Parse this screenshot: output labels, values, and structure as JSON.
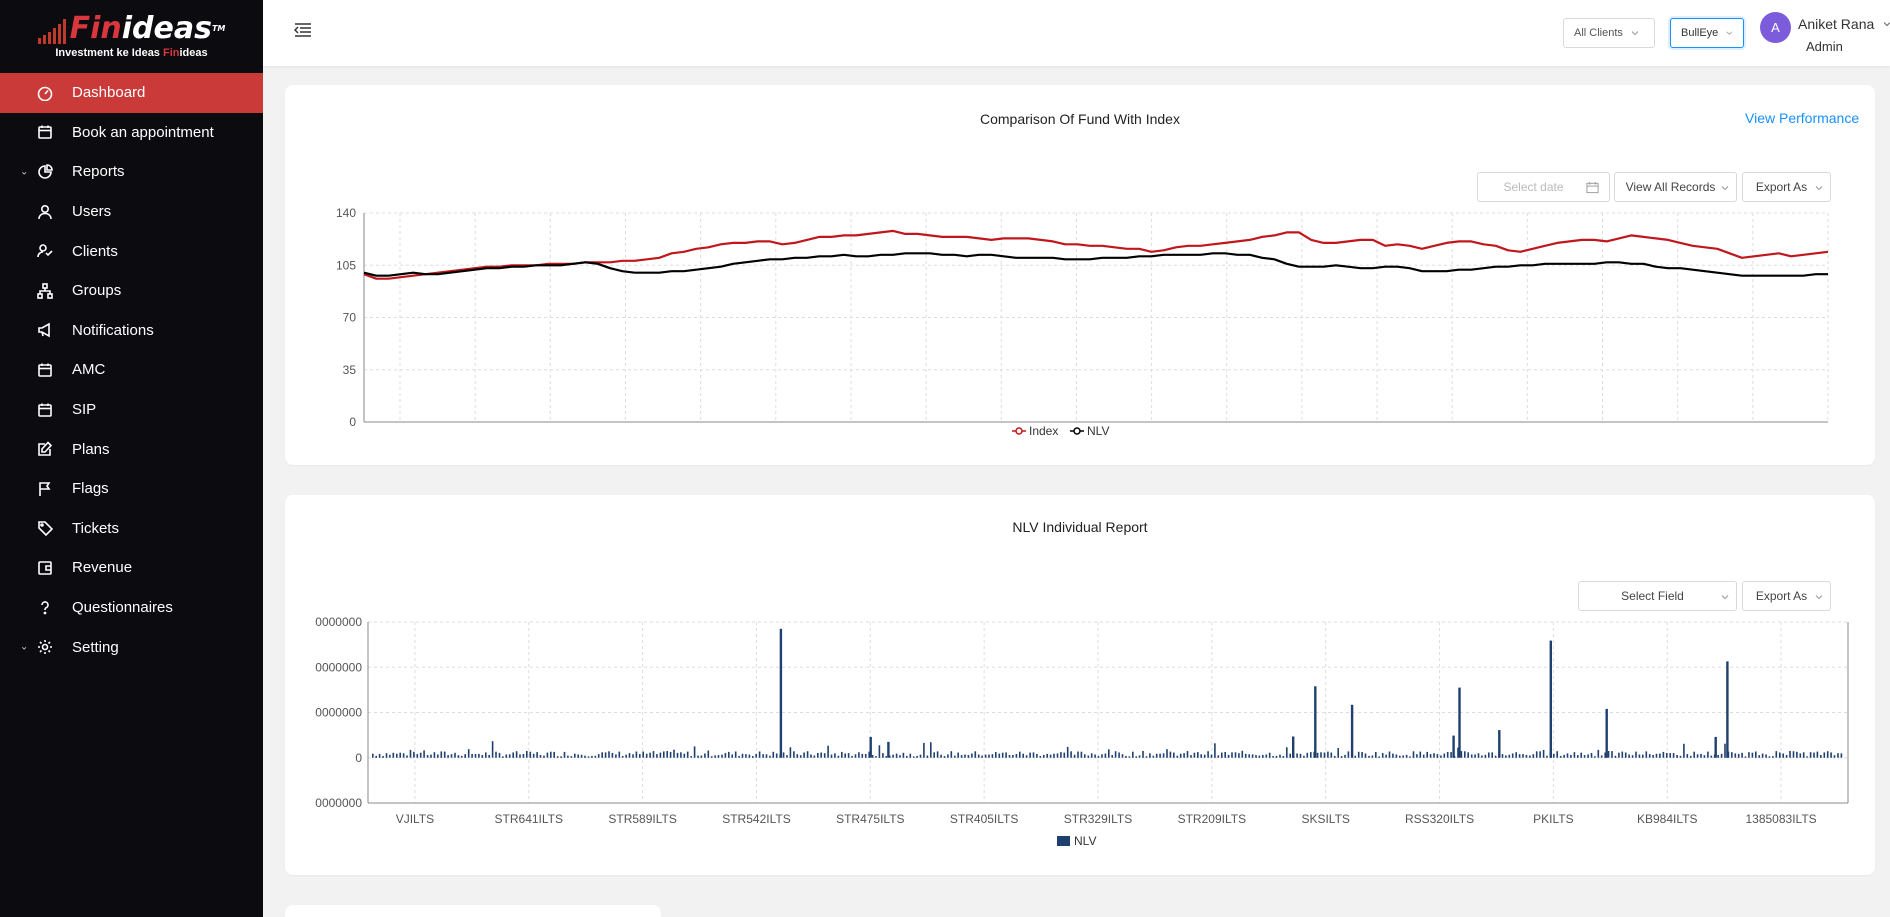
{
  "brand": {
    "logo_word_fin": "Fin",
    "logo_word_ideas": "ideas",
    "logo_tm": "TM",
    "tagline_a": "Investment ke Ideas ",
    "tagline_b": "Fin",
    "tagline_c": "ideas"
  },
  "sidebar": {
    "items": [
      {
        "label": "Dashboard",
        "icon": "dashboard-icon",
        "active": true
      },
      {
        "label": "Book an appointment",
        "icon": "calendar-icon"
      },
      {
        "label": "Reports",
        "icon": "pie-chart-icon",
        "expandable": true
      },
      {
        "label": "Users",
        "icon": "user-icon"
      },
      {
        "label": "Clients",
        "icon": "clients-icon"
      },
      {
        "label": "Groups",
        "icon": "cluster-icon"
      },
      {
        "label": "Notifications",
        "icon": "megaphone-icon"
      },
      {
        "label": "AMC",
        "icon": "calendar-icon"
      },
      {
        "label": "SIP",
        "icon": "calendar-icon"
      },
      {
        "label": "Plans",
        "icon": "edit-icon"
      },
      {
        "label": "Flags",
        "icon": "flag-icon"
      },
      {
        "label": "Tickets",
        "icon": "tag-icon"
      },
      {
        "label": "Revenue",
        "icon": "wallet-icon"
      },
      {
        "label": "Questionnaires",
        "icon": "question-icon"
      },
      {
        "label": "Setting",
        "icon": "gear-icon",
        "expandable": true
      }
    ]
  },
  "header": {
    "client_filter": "All Clients",
    "strategy_filter": "BullEye",
    "avatar_letter": "A",
    "user_name": "Aniket Rana",
    "user_role": "Admin"
  },
  "comparison_card": {
    "title": "Comparison Of Fund With Index",
    "view_performance": "View Performance",
    "date_placeholder": "Select date",
    "records_select": "View All Records",
    "export": "Export As"
  },
  "nlv_card": {
    "title": "NLV Individual Report",
    "field_select": "Select Field",
    "export": "Export As"
  },
  "colors": {
    "index_line": "#c0171c",
    "nlv_line": "#000000",
    "bar": "#1f3f6e",
    "active_menu": "#c93a38"
  },
  "chart_data": [
    {
      "type": "line",
      "title": "",
      "ylim": [
        0,
        140
      ],
      "yticks": [
        0,
        35,
        70,
        105,
        140
      ],
      "grid": true,
      "legend": "bottom-center",
      "series": [
        {
          "name": "Index",
          "color": "#c0171c",
          "values": [
            99,
            96,
            96,
            97,
            98,
            99,
            100,
            101,
            102,
            103,
            104,
            104,
            105,
            105,
            105,
            106,
            106,
            106,
            107,
            107,
            107,
            108,
            108,
            109,
            110,
            113,
            114,
            116,
            117,
            119,
            120,
            120,
            121,
            121,
            119,
            120,
            122,
            124,
            124,
            125,
            125,
            126,
            127,
            128,
            126,
            126,
            125,
            124,
            124,
            124,
            123,
            122,
            123,
            123,
            123,
            122,
            121,
            119,
            119,
            118,
            118,
            117,
            116,
            116,
            114,
            115,
            117,
            118,
            118,
            119,
            120,
            121,
            122,
            124,
            125,
            127,
            127,
            122,
            120,
            120,
            121,
            122,
            122,
            118,
            119,
            118,
            116,
            118,
            120,
            121,
            121,
            119,
            118,
            115,
            114,
            116,
            118,
            120,
            121,
            122,
            122,
            121,
            123,
            125,
            124,
            123,
            122,
            120,
            118,
            117,
            116,
            113,
            110,
            111,
            112,
            113,
            111,
            112,
            113,
            114
          ]
        },
        {
          "name": "NLV",
          "color": "#000000",
          "values": [
            100,
            98,
            98,
            99,
            100,
            99,
            99,
            100,
            101,
            102,
            103,
            103,
            104,
            104,
            105,
            105,
            105,
            106,
            107,
            106,
            103,
            101,
            100,
            100,
            100,
            101,
            101,
            102,
            103,
            104,
            106,
            107,
            108,
            109,
            109,
            110,
            110,
            111,
            111,
            112,
            111,
            111,
            112,
            112,
            113,
            113,
            113,
            112,
            112,
            111,
            112,
            112,
            111,
            110,
            110,
            110,
            110,
            109,
            109,
            109,
            110,
            110,
            110,
            111,
            111,
            112,
            112,
            112,
            112,
            113,
            113,
            112,
            112,
            110,
            109,
            106,
            104,
            104,
            104,
            105,
            104,
            103,
            103,
            104,
            104,
            103,
            101,
            101,
            101,
            102,
            102,
            103,
            104,
            104,
            105,
            105,
            106,
            106,
            106,
            106,
            106,
            107,
            107,
            106,
            106,
            104,
            103,
            103,
            102,
            101,
            100,
            99,
            98,
            98,
            98,
            98,
            98,
            98,
            99,
            99
          ]
        }
      ]
    },
    {
      "type": "bar",
      "title": "",
      "yticks_label": [
        "0000000",
        "0000000",
        "0000000",
        "0",
        "0000000"
      ],
      "yticks": [
        30000000,
        20000000,
        10000000,
        0,
        -10000000
      ],
      "ylim": [
        -10000000,
        30000000
      ],
      "categories": [
        "VJILTS",
        "STR641ILTS",
        "STR589ILTS",
        "STR542ILTS",
        "STR475ILTS",
        "STR405ILTS",
        "STR329ILTS",
        "STR209ILTS",
        "SKSILTS",
        "RSS320ILTS",
        "PKILTS",
        "KB984ILTS",
        "1385083ILTS"
      ],
      "grid": true,
      "legend": "bottom-center",
      "series": [
        {
          "name": "NLV",
          "color": "#1f3f6e"
        }
      ],
      "spikes": [
        {
          "pos": 0.277,
          "value": 28500000
        },
        {
          "pos": 0.64,
          "value": 15800000
        },
        {
          "pos": 0.665,
          "value": 11700000
        },
        {
          "pos": 0.738,
          "value": 15500000
        },
        {
          "pos": 0.765,
          "value": 6100000
        },
        {
          "pos": 0.8,
          "value": 25900000
        },
        {
          "pos": 0.838,
          "value": 10800000
        },
        {
          "pos": 0.92,
          "value": 21300000
        },
        {
          "pos": 0.912,
          "value": 4600000
        },
        {
          "pos": 0.734,
          "value": 4900000
        },
        {
          "pos": 0.625,
          "value": 4700000
        },
        {
          "pos": 0.338,
          "value": 4600000
        },
        {
          "pos": 0.35,
          "value": 3500000
        }
      ]
    }
  ]
}
